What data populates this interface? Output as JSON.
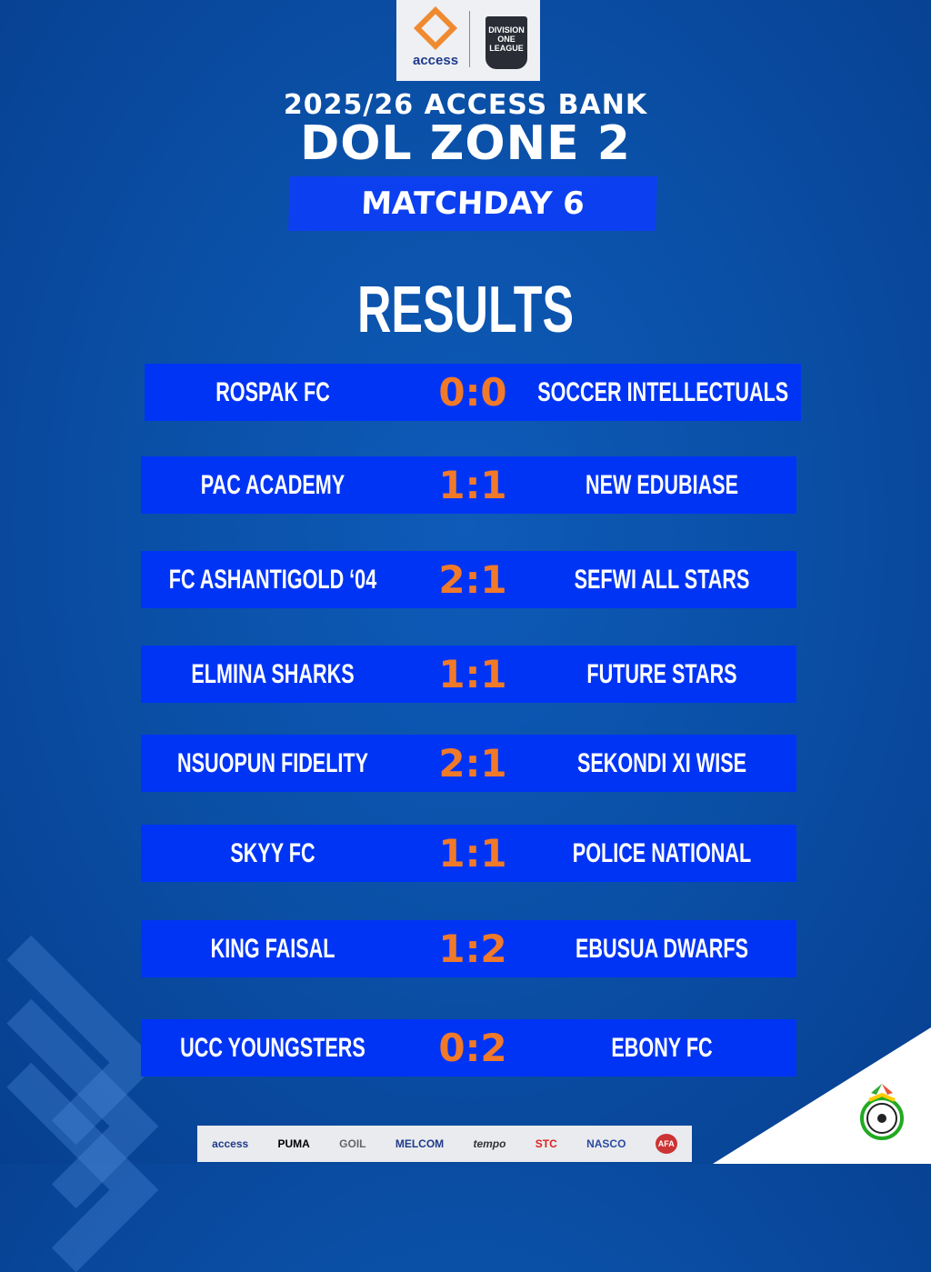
{
  "header": {
    "sponsor_logo": "access",
    "league_logo": "DIVISION ONE LEAGUE",
    "line1": "2025/26 ACCESS BANK",
    "line2": "DOL ZONE 2",
    "matchday": "MATCHDAY 6",
    "section_title": "RESULTS"
  },
  "colors": {
    "row_bg": "#0034f5",
    "score": "#f07a2a",
    "background": "#0a4fa6"
  },
  "results": [
    {
      "home": "ROSPAK FC",
      "score": "0:0",
      "away": "SOCCER INTELLECTUALS"
    },
    {
      "home": "PAC ACADEMY",
      "score": "1:1",
      "away": "NEW EDUBIASE"
    },
    {
      "home": "FC ASHANTIGOLD ‘04",
      "score": "2:1",
      "away": "SEFWI ALL STARS"
    },
    {
      "home": "ELMINA SHARKS",
      "score": "1:1",
      "away": "FUTURE STARS"
    },
    {
      "home": "NSUOPUN FIDELITY",
      "score": "2:1",
      "away": "SEKONDI XI WISE"
    },
    {
      "home": "SKYY FC",
      "score": "1:1",
      "away": "POLICE NATIONAL"
    },
    {
      "home": "KING FAISAL",
      "score": "1:2",
      "away": "EBUSUA DWARFS"
    },
    {
      "home": "UCC YOUNGSTERS",
      "score": "0:2",
      "away": "EBONY FC"
    }
  ],
  "sponsors": [
    "access",
    "PUMA",
    "GOIL",
    "MELCOM",
    "tempo",
    "STC",
    "NASCO",
    "AFA"
  ],
  "footer_crest": "Ghana Football Association"
}
